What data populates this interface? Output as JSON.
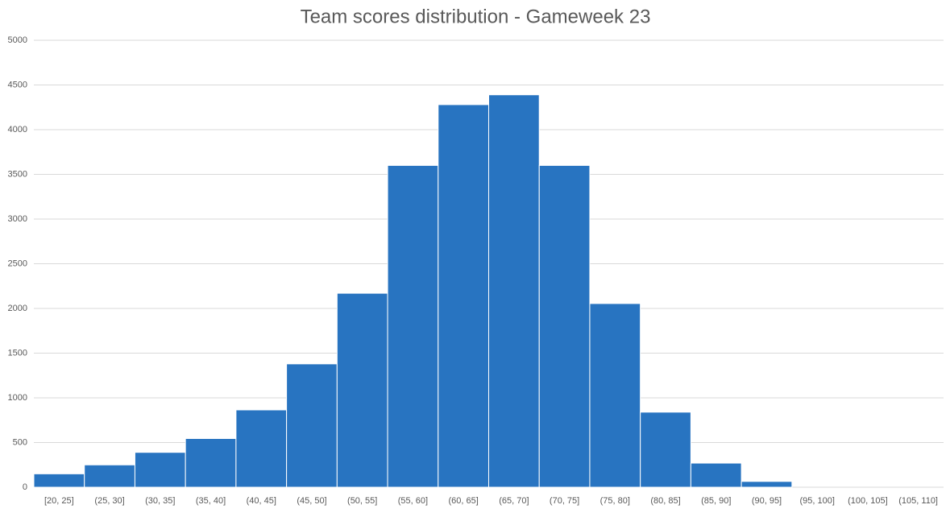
{
  "chart_data": {
    "type": "bar",
    "title": "Team scores distribution - Gameweek 23",
    "categories": [
      "[20, 25]",
      "(25, 30]",
      "(30, 35]",
      "(35, 40]",
      "(40, 45]",
      "(45, 50]",
      "(50, 55]",
      "(55, 60]",
      "(60, 65]",
      "(65, 70]",
      "(70, 75]",
      "(75, 80]",
      "(80, 85]",
      "(85, 90]",
      "(90, 95]",
      "(95, 100]",
      "(100, 105]",
      "(105, 110]"
    ],
    "values": [
      150,
      250,
      390,
      545,
      865,
      1380,
      2170,
      3600,
      4280,
      4390,
      3600,
      2055,
      840,
      270,
      65,
      0,
      0,
      0
    ],
    "color": "#2874c1",
    "ylim": [
      0,
      5000
    ],
    "yticks": [
      0,
      500,
      1000,
      1500,
      2000,
      2500,
      3000,
      3500,
      4000,
      4500,
      5000
    ],
    "grid": true
  }
}
